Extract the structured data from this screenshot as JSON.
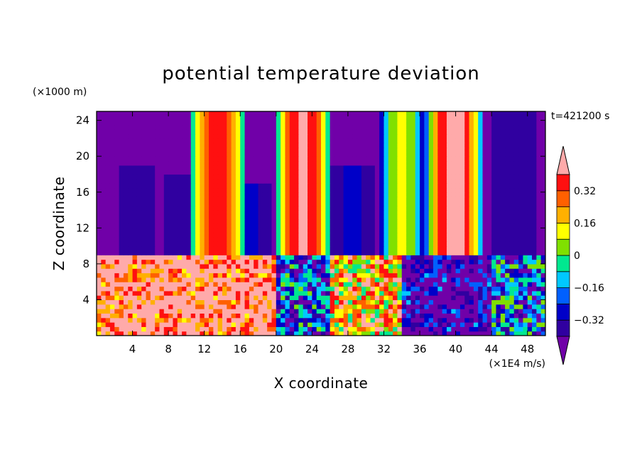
{
  "chart_data": {
    "type": "heatmap",
    "title": "potential temperature deviation",
    "xlabel": "X coordinate",
    "ylabel": "Z coordinate",
    "x_units": "(×1E4 m/s)",
    "y_units": "(×1000 m)",
    "time_label": "t=421200 s",
    "xlim": [
      0,
      50
    ],
    "ylim": [
      0,
      25
    ],
    "xticks": [
      4,
      8,
      12,
      16,
      20,
      24,
      28,
      32,
      36,
      40,
      44,
      48
    ],
    "yticks": [
      4,
      8,
      12,
      16,
      20,
      24
    ],
    "colorbar": {
      "levels": [
        -0.4,
        -0.32,
        -0.24,
        -0.16,
        -0.08,
        0,
        0.08,
        0.16,
        0.24,
        0.32,
        0.4
      ],
      "labels": [
        "0.32",
        "0.16",
        "0",
        "−0.16",
        "−0.32"
      ],
      "label_values": [
        0.32,
        0.16,
        0,
        -0.16,
        -0.32
      ],
      "colors": [
        "#7000a8",
        "#3000a0",
        "#0000c8",
        "#0060ff",
        "#00c8ff",
        "#00e890",
        "#80e000",
        "#ffff00",
        "#ffb000",
        "#ff6000",
        "#ff1010",
        "#ffaaaa"
      ]
    },
    "upper_layer": {
      "background_value": -0.42,
      "columns": [
        {
          "x_center": 4.5,
          "z_top": 19,
          "value": -0.36
        },
        {
          "x_center": 9.5,
          "z_top": 18,
          "value": -0.36
        },
        {
          "x_center": 13.5,
          "z_top": 25,
          "value": 0.36
        },
        {
          "x_center": 17.0,
          "z_top": 17,
          "value": -0.3
        },
        {
          "x_center": 23.0,
          "z_top": 25,
          "value": 0.42
        },
        {
          "x_center": 28.5,
          "z_top": 19,
          "value": -0.3
        },
        {
          "x_center": 34.0,
          "z_top": 25,
          "value": 0.1
        },
        {
          "x_center": 39.8,
          "z_top": 25,
          "value": 0.45
        },
        {
          "x_center": 46.5,
          "z_top": 25,
          "value": -0.32
        }
      ]
    },
    "lower_layer": {
      "z_top": 9,
      "regions": [
        {
          "x_from": 0,
          "x_to": 20,
          "value": 0.42
        },
        {
          "x_from": 20,
          "x_to": 26,
          "value": -0.24
        },
        {
          "x_from": 26,
          "x_to": 34,
          "value": 0.2
        },
        {
          "x_from": 34,
          "x_to": 44,
          "value": -0.42
        },
        {
          "x_from": 44,
          "x_to": 50,
          "value": -0.2
        }
      ]
    }
  }
}
